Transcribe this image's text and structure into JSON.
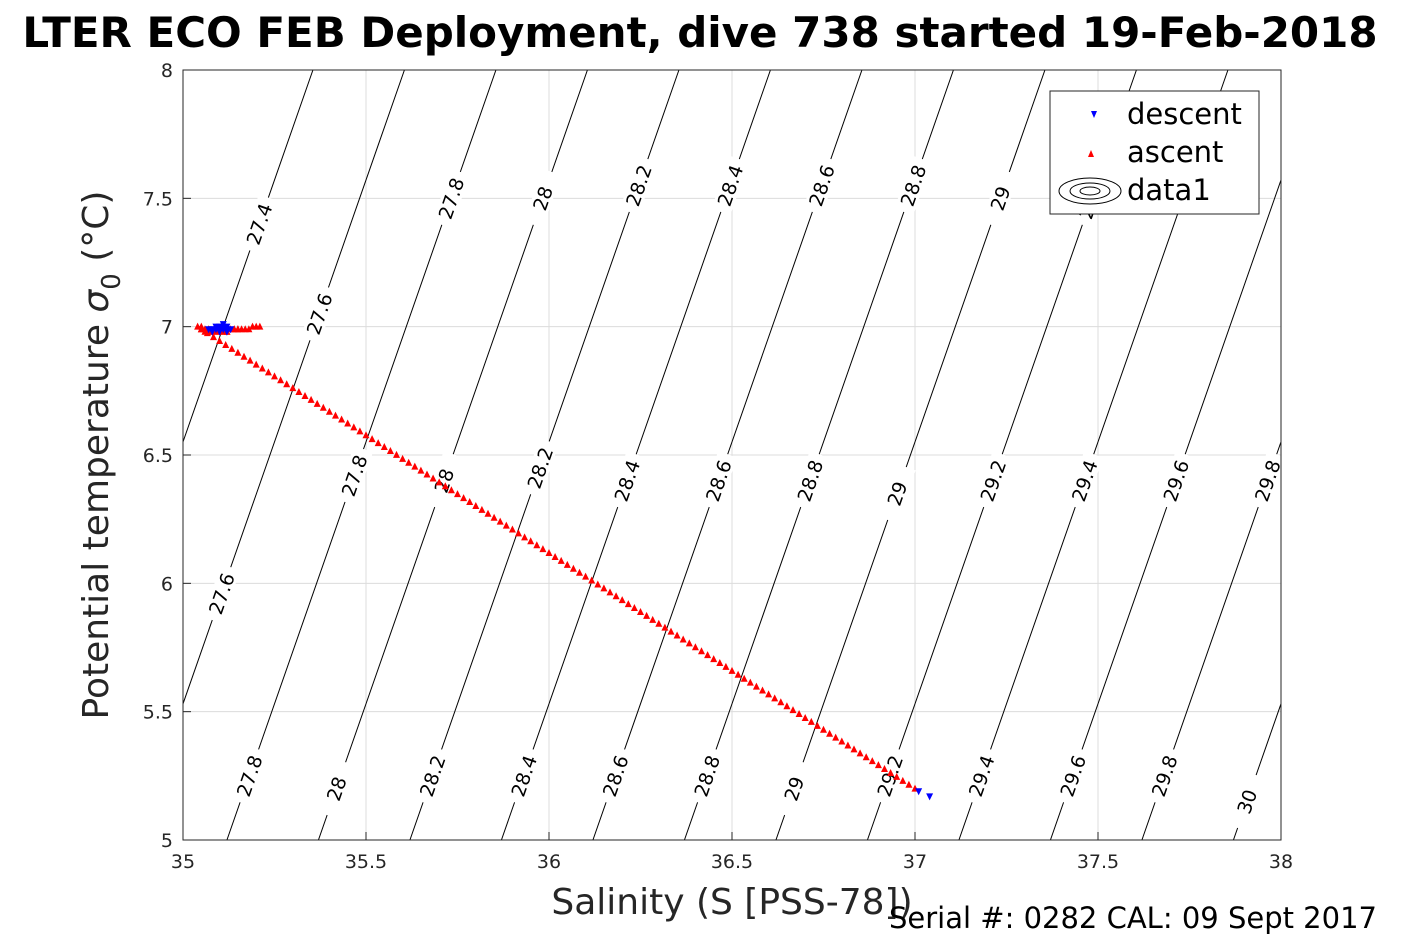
{
  "chart_data": {
    "type": "scatter",
    "title": "LTER ECO FEB Deployment, dive 738 started 19-Feb-2018",
    "xlabel": "Salinity (S [PSS-78])",
    "ylabel": "Potential temperature",
    "ylabel_symbol": "σ",
    "ylabel_sub": "0",
    "ylabel_unit": "(°C)",
    "xlim": [
      35,
      38
    ],
    "ylim": [
      5,
      8
    ],
    "xticks": [
      "35",
      "35.5",
      "36",
      "36.5",
      "37",
      "37.5",
      "38"
    ],
    "yticks": [
      "5",
      "5.5",
      "6",
      "6.5",
      "7",
      "7.5",
      "8"
    ],
    "grid": true,
    "legend_position": "top-right",
    "series": [
      {
        "name": "descent",
        "marker": "triangle-down",
        "color": "#0000ff",
        "x": [
          35.07,
          35.08,
          35.09,
          35.09,
          35.1,
          35.1,
          35.11,
          35.11,
          35.12,
          35.12,
          35.13,
          35.08,
          35.1,
          35.11,
          35.12,
          37.01,
          37.04
        ],
        "y": [
          6.99,
          6.99,
          6.99,
          7.0,
          6.99,
          7.0,
          6.99,
          7.01,
          6.99,
          7.0,
          6.99,
          6.98,
          6.98,
          7.0,
          6.98,
          5.19,
          5.17
        ]
      },
      {
        "name": "ascent",
        "marker": "triangle-up",
        "color": "#ff0000",
        "x": [
          35.05,
          35.06,
          35.07,
          35.14,
          35.15,
          35.12,
          35.04,
          35.05,
          35.06,
          35.07,
          35.08,
          35.09,
          35.1,
          35.11,
          35.12,
          35.13,
          35.14,
          35.15,
          35.16,
          35.17,
          35.18,
          35.19,
          35.2,
          35.21
        ],
        "y": [
          6.99,
          6.98,
          6.98,
          6.99,
          6.99,
          6.98,
          7.0,
          7.0,
          6.99,
          6.99,
          6.98,
          6.98,
          6.98,
          6.98,
          6.98,
          6.99,
          6.99,
          6.99,
          6.99,
          6.99,
          6.99,
          7.0,
          7.0,
          7.0
        ],
        "line_from": [
          35.05,
          6.99
        ],
        "line_to": [
          37.0,
          5.2
        ],
        "line_points": 118
      }
    ],
    "contours": [
      {
        "level": "27.4",
        "s_at_t5": 34.62,
        "labels_t": [
          7.4
        ]
      },
      {
        "level": "27.6",
        "s_at_t5": 34.87,
        "labels_t": [
          7.05,
          5.96
        ]
      },
      {
        "level": "27.8",
        "s_at_t5": 35.12,
        "labels_t": [
          7.5,
          6.42,
          5.25
        ]
      },
      {
        "level": "28",
        "s_at_t5": 35.37,
        "labels_t": [
          7.5,
          6.4,
          5.2
        ]
      },
      {
        "level": "28.2",
        "s_at_t5": 35.62,
        "labels_t": [
          7.55,
          6.45,
          5.25
        ]
      },
      {
        "level": "28.4",
        "s_at_t5": 35.87,
        "labels_t": [
          7.55,
          6.4,
          5.25
        ]
      },
      {
        "level": "28.6",
        "s_at_t5": 36.12,
        "labels_t": [
          7.55,
          6.4,
          5.25
        ]
      },
      {
        "level": "28.8",
        "s_at_t5": 36.37,
        "labels_t": [
          7.55,
          6.4,
          5.25
        ]
      },
      {
        "level": "29",
        "s_at_t5": 36.62,
        "labels_t": [
          7.5,
          6.35,
          5.2
        ]
      },
      {
        "level": "29.2",
        "s_at_t5": 36.87,
        "labels_t": [
          7.5,
          6.4,
          5.25
        ]
      },
      {
        "level": "29.4",
        "s_at_t5": 37.12,
        "labels_t": [
          6.4,
          5.25
        ]
      },
      {
        "level": "29.6",
        "s_at_t5": 37.37,
        "labels_t": [
          6.4,
          5.25
        ]
      },
      {
        "level": "29.8",
        "s_at_t5": 37.62,
        "labels_t": [
          6.4,
          5.25
        ]
      },
      {
        "level": "30",
        "s_at_t5": 37.87,
        "labels_t": [
          5.15
        ]
      }
    ],
    "contour_dsdt": 0.245,
    "contour_legend_name": "data1"
  },
  "footer": {
    "serial": "Serial #: 0282  CAL: 09 Sept 2017"
  }
}
